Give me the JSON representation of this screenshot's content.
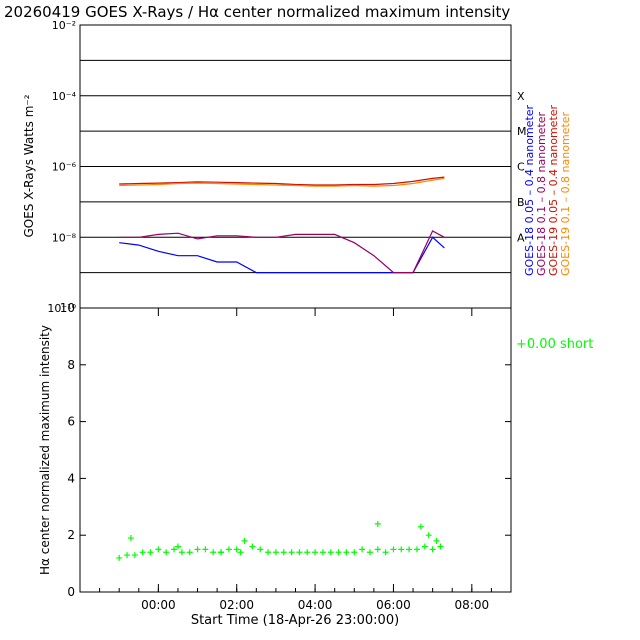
{
  "title": "20260419 GOES X-Rays / Hα center normalized maximum intensity",
  "colors": {
    "axes": "#000000",
    "goes18_short": "#0000ff",
    "goes18_long": "#990066",
    "goes19_short": "#cc1100",
    "goes19_long": "#ff8800",
    "halpha": "#00ff00"
  },
  "chart_data": [
    {
      "type": "line",
      "ylabel": "GOES X-Rays Watts m⁻²",
      "yscale": "log",
      "ylim": [
        1e-10,
        0.01
      ],
      "y_tick_labels": [
        "10⁻¹⁰",
        "10⁻⁸",
        "10⁻⁶",
        "10⁻⁴",
        "10⁻²"
      ],
      "flare_class_labels": [
        "A",
        "B",
        "C",
        "M",
        "X"
      ],
      "grid": "horizontal lines at each decade",
      "xlim_hours": [
        -1.0,
        10.0
      ],
      "x_hours_note": "hours after 18-Apr-26 23:00",
      "series": [
        {
          "name": "GOES-18 0.05 – 0.4 nanometer",
          "color_key": "goes18_short",
          "x": [
            0.0,
            0.5,
            1.0,
            1.5,
            2.0,
            2.5,
            3.0,
            3.5,
            4.0,
            4.5,
            5.0,
            5.5,
            6.0,
            6.5,
            7.0,
            7.5,
            8.0,
            8.3
          ],
          "y": [
            7e-09,
            6e-09,
            4e-09,
            3e-09,
            3e-09,
            2e-09,
            2e-09,
            1e-09,
            1e-09,
            1e-09,
            1e-09,
            1e-09,
            1e-09,
            1e-09,
            1e-09,
            1e-09,
            1e-08,
            5e-09
          ]
        },
        {
          "name": "GOES-18 0.1 – 0.8 nanometer",
          "color_key": "goes18_long",
          "x": [
            0.0,
            0.5,
            1.0,
            1.5,
            2.0,
            2.5,
            3.0,
            3.5,
            4.0,
            4.5,
            5.0,
            5.5,
            6.0,
            6.5,
            7.0,
            7.5,
            8.0,
            8.3
          ],
          "y": [
            1e-08,
            1e-08,
            1.2e-08,
            1.3e-08,
            9e-09,
            1.1e-08,
            1.1e-08,
            1e-08,
            1e-08,
            1.2e-08,
            1.2e-08,
            1.2e-08,
            7e-09,
            3e-09,
            1e-09,
            1e-09,
            1.5e-08,
            1e-08
          ]
        },
        {
          "name": "GOES-19 0.05 – 0.4 nanometer",
          "color_key": "goes19_short",
          "x": [
            0.0,
            0.5,
            1.0,
            1.5,
            2.0,
            2.5,
            3.0,
            3.5,
            4.0,
            4.5,
            5.0,
            5.5,
            6.0,
            6.5,
            7.0,
            7.5,
            8.0,
            8.3
          ],
          "y": [
            3.2e-07,
            3.3e-07,
            3.4e-07,
            3.5e-07,
            3.7e-07,
            3.6e-07,
            3.5e-07,
            3.4e-07,
            3.3e-07,
            3.1e-07,
            3e-07,
            3e-07,
            3.1e-07,
            3.1e-07,
            3.3e-07,
            3.8e-07,
            4.6e-07,
            5e-07
          ]
        },
        {
          "name": "GOES-19 0.1 – 0.8 nanometer",
          "color_key": "goes19_long",
          "x": [
            0.0,
            0.5,
            1.0,
            1.5,
            2.0,
            2.5,
            3.0,
            3.5,
            4.0,
            4.5,
            5.0,
            5.5,
            6.0,
            6.5,
            7.0,
            7.5,
            8.0,
            8.3
          ],
          "y": [
            2.9e-07,
            3e-07,
            3.1e-07,
            3.3e-07,
            3.4e-07,
            3.3e-07,
            3.2e-07,
            3.1e-07,
            3e-07,
            2.9e-07,
            2.8e-07,
            2.8e-07,
            2.9e-07,
            2.8e-07,
            2.9e-07,
            3.3e-07,
            4.1e-07,
            4.6e-07
          ]
        }
      ]
    },
    {
      "type": "scatter",
      "ylabel": "Hα center normalized maximum intensity",
      "xlabel": "Start Time (18-Apr-26 23:00:00)",
      "ylim": [
        0,
        10
      ],
      "y_ticks": [
        0,
        2,
        4,
        6,
        8,
        10
      ],
      "xlim_hours": [
        -1.0,
        10.0
      ],
      "x_ticks_hours": [
        1,
        3,
        5,
        7,
        9
      ],
      "x_tick_labels": [
        "00:00",
        "02:00",
        "04:00",
        "06:00",
        "08:00"
      ],
      "marker": "+",
      "legend": {
        "label": "+0.00 short",
        "placement": "right of plot"
      },
      "series": [
        {
          "name": "Hα",
          "color_key": "halpha",
          "x": [
            0.0,
            0.2,
            0.4,
            0.6,
            0.8,
            1.0,
            1.2,
            1.4,
            1.6,
            1.8,
            2.0,
            2.2,
            2.4,
            2.6,
            2.8,
            3.0,
            3.2,
            3.4,
            3.6,
            3.8,
            4.0,
            4.2,
            4.4,
            4.6,
            4.8,
            5.0,
            5.2,
            5.4,
            5.6,
            5.8,
            6.0,
            6.2,
            6.4,
            6.6,
            6.8,
            7.0,
            7.2,
            7.4,
            7.6,
            7.8,
            8.0,
            8.2,
            0.3,
            1.5,
            2.6,
            3.1,
            6.6,
            7.7,
            7.9,
            8.1
          ],
          "y": [
            1.2,
            1.3,
            1.3,
            1.4,
            1.4,
            1.5,
            1.4,
            1.5,
            1.4,
            1.4,
            1.5,
            1.5,
            1.4,
            1.4,
            1.5,
            1.5,
            1.8,
            1.6,
            1.5,
            1.4,
            1.4,
            1.4,
            1.4,
            1.4,
            1.4,
            1.4,
            1.4,
            1.4,
            1.4,
            1.4,
            1.4,
            1.5,
            1.4,
            1.5,
            1.4,
            1.5,
            1.5,
            1.5,
            1.5,
            1.6,
            1.5,
            1.6,
            1.9,
            1.6,
            1.4,
            1.4,
            2.4,
            2.3,
            2.0,
            1.8
          ]
        }
      ]
    }
  ]
}
